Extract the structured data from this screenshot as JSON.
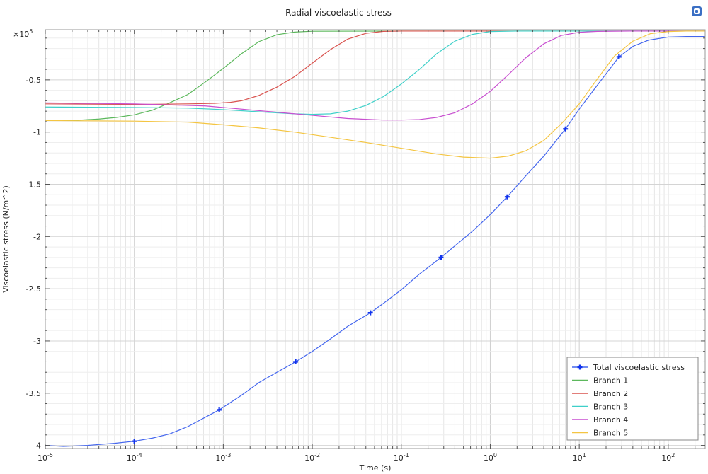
{
  "chart_data": {
    "type": "line",
    "title": "Radial viscoelastic stress",
    "xlabel": "Time (s)",
    "ylabel": "Viscoelastic stress (N/m^2)",
    "x_scale": "log",
    "xlim": [
      1e-05,
      260
    ],
    "ylim": [
      -4.03,
      -0.02
    ],
    "y_multiplier": "×10",
    "y_multiplier_exp": "5",
    "x_ticks": [
      {
        "v": 1e-05,
        "b": "10",
        "e": "-5"
      },
      {
        "v": 0.0001,
        "b": "10",
        "e": "-4"
      },
      {
        "v": 0.001,
        "b": "10",
        "e": "-3"
      },
      {
        "v": 0.01,
        "b": "10",
        "e": "-2"
      },
      {
        "v": 0.1,
        "b": "10",
        "e": "-1"
      },
      {
        "v": 1,
        "b": "10",
        "e": "0"
      },
      {
        "v": 10,
        "b": "10",
        "e": "1"
      },
      {
        "v": 100,
        "b": "10",
        "e": "2"
      }
    ],
    "y_ticks": [
      {
        "v": -0.5,
        "label": "-0.5"
      },
      {
        "v": -1,
        "label": "-1"
      },
      {
        "v": -1.5,
        "label": "-1.5"
      },
      {
        "v": -2,
        "label": "-2"
      },
      {
        "v": -2.5,
        "label": "-2.5"
      },
      {
        "v": -3,
        "label": "-3"
      },
      {
        "v": -3.5,
        "label": "-3.5"
      },
      {
        "v": -4,
        "label": "-4"
      }
    ],
    "grid": true,
    "legend": "bottom-right",
    "series": [
      {
        "name": "Total viscoelastic stress",
        "color": "#4466ee",
        "marker": "plus",
        "markers": [
          [
            0.0001,
            -3.96
          ],
          [
            0.0009,
            -3.66
          ],
          [
            0.0065,
            -3.2
          ],
          [
            0.045,
            -2.73
          ],
          [
            0.28,
            -2.2
          ],
          [
            1.55,
            -1.62
          ],
          [
            7,
            -0.97
          ],
          [
            28,
            -0.28
          ]
        ],
        "points": [
          [
            1e-05,
            -4.0
          ],
          [
            1.6e-05,
            -4.01
          ],
          [
            3e-05,
            -4.0
          ],
          [
            6e-05,
            -3.98
          ],
          [
            0.0001,
            -3.96
          ],
          [
            0.00016,
            -3.93
          ],
          [
            0.00025,
            -3.89
          ],
          [
            0.0004,
            -3.82
          ],
          [
            0.00063,
            -3.73
          ],
          [
            0.0009,
            -3.66
          ],
          [
            0.0016,
            -3.52
          ],
          [
            0.0025,
            -3.4
          ],
          [
            0.004,
            -3.3
          ],
          [
            0.0065,
            -3.2
          ],
          [
            0.01,
            -3.1
          ],
          [
            0.016,
            -2.98
          ],
          [
            0.025,
            -2.86
          ],
          [
            0.045,
            -2.73
          ],
          [
            0.063,
            -2.64
          ],
          [
            0.1,
            -2.51
          ],
          [
            0.16,
            -2.36
          ],
          [
            0.28,
            -2.2
          ],
          [
            0.4,
            -2.09
          ],
          [
            0.63,
            -1.95
          ],
          [
            1,
            -1.79
          ],
          [
            1.55,
            -1.62
          ],
          [
            2.5,
            -1.42
          ],
          [
            4,
            -1.23
          ],
          [
            7,
            -0.97
          ],
          [
            10,
            -0.78
          ],
          [
            16,
            -0.55
          ],
          [
            28,
            -0.28
          ],
          [
            40,
            -0.18
          ],
          [
            60,
            -0.12
          ],
          [
            100,
            -0.09
          ],
          [
            160,
            -0.085
          ],
          [
            260,
            -0.085
          ]
        ]
      },
      {
        "name": "Branch 1",
        "color": "#5cb85c",
        "points": [
          [
            1e-05,
            -0.89
          ],
          [
            2e-05,
            -0.89
          ],
          [
            4e-05,
            -0.875
          ],
          [
            6.3e-05,
            -0.86
          ],
          [
            0.0001,
            -0.835
          ],
          [
            0.00016,
            -0.79
          ],
          [
            0.00025,
            -0.72
          ],
          [
            0.0004,
            -0.64
          ],
          [
            0.00063,
            -0.52
          ],
          [
            0.001,
            -0.39
          ],
          [
            0.0016,
            -0.25
          ],
          [
            0.0025,
            -0.135
          ],
          [
            0.004,
            -0.068
          ],
          [
            0.0063,
            -0.043
          ],
          [
            0.01,
            -0.035
          ],
          [
            0.1,
            -0.033
          ],
          [
            260,
            -0.033
          ]
        ]
      },
      {
        "name": "Branch 2",
        "color": "#d9534f",
        "points": [
          [
            1e-05,
            -0.73
          ],
          [
            0.0001,
            -0.735
          ],
          [
            0.0004,
            -0.73
          ],
          [
            0.0008,
            -0.725
          ],
          [
            0.0012,
            -0.715
          ],
          [
            0.0016,
            -0.7
          ],
          [
            0.0025,
            -0.65
          ],
          [
            0.004,
            -0.57
          ],
          [
            0.0063,
            -0.47
          ],
          [
            0.01,
            -0.34
          ],
          [
            0.016,
            -0.21
          ],
          [
            0.025,
            -0.11
          ],
          [
            0.04,
            -0.055
          ],
          [
            0.063,
            -0.036
          ],
          [
            0.1,
            -0.033
          ],
          [
            260,
            -0.033
          ]
        ]
      },
      {
        "name": "Branch 3",
        "color": "#3fd0c9",
        "points": [
          [
            1e-05,
            -0.76
          ],
          [
            0.0001,
            -0.765
          ],
          [
            0.0004,
            -0.77
          ],
          [
            0.001,
            -0.785
          ],
          [
            0.003,
            -0.81
          ],
          [
            0.0063,
            -0.825
          ],
          [
            0.01,
            -0.83
          ],
          [
            0.016,
            -0.825
          ],
          [
            0.025,
            -0.8
          ],
          [
            0.04,
            -0.745
          ],
          [
            0.063,
            -0.66
          ],
          [
            0.1,
            -0.54
          ],
          [
            0.16,
            -0.4
          ],
          [
            0.25,
            -0.25
          ],
          [
            0.4,
            -0.13
          ],
          [
            0.63,
            -0.065
          ],
          [
            1,
            -0.038
          ],
          [
            2,
            -0.033
          ],
          [
            260,
            -0.033
          ]
        ]
      },
      {
        "name": "Branch 4",
        "color": "#c84fd0",
        "points": [
          [
            1e-05,
            -0.72
          ],
          [
            0.0001,
            -0.73
          ],
          [
            0.00063,
            -0.75
          ],
          [
            0.0016,
            -0.78
          ],
          [
            0.004,
            -0.81
          ],
          [
            0.01,
            -0.84
          ],
          [
            0.025,
            -0.87
          ],
          [
            0.063,
            -0.885
          ],
          [
            0.1,
            -0.885
          ],
          [
            0.16,
            -0.88
          ],
          [
            0.25,
            -0.86
          ],
          [
            0.4,
            -0.815
          ],
          [
            0.63,
            -0.73
          ],
          [
            1,
            -0.61
          ],
          [
            1.6,
            -0.45
          ],
          [
            2.5,
            -0.29
          ],
          [
            4,
            -0.155
          ],
          [
            6.3,
            -0.075
          ],
          [
            10,
            -0.045
          ],
          [
            16,
            -0.036
          ],
          [
            40,
            -0.033
          ],
          [
            260,
            -0.033
          ]
        ]
      },
      {
        "name": "Branch 5",
        "color": "#f4c542",
        "points": [
          [
            1e-05,
            -0.89
          ],
          [
            0.0001,
            -0.895
          ],
          [
            0.0004,
            -0.905
          ],
          [
            0.001,
            -0.93
          ],
          [
            0.0025,
            -0.96
          ],
          [
            0.0063,
            -1.0
          ],
          [
            0.016,
            -1.05
          ],
          [
            0.04,
            -1.1
          ],
          [
            0.1,
            -1.155
          ],
          [
            0.25,
            -1.21
          ],
          [
            0.5,
            -1.24
          ],
          [
            1,
            -1.25
          ],
          [
            1.6,
            -1.23
          ],
          [
            2.5,
            -1.18
          ],
          [
            4,
            -1.08
          ],
          [
            6.3,
            -0.92
          ],
          [
            10,
            -0.73
          ],
          [
            16,
            -0.49
          ],
          [
            25,
            -0.27
          ],
          [
            40,
            -0.13
          ],
          [
            63,
            -0.058
          ],
          [
            100,
            -0.038
          ],
          [
            160,
            -0.033
          ],
          [
            260,
            -0.033
          ]
        ]
      }
    ]
  }
}
